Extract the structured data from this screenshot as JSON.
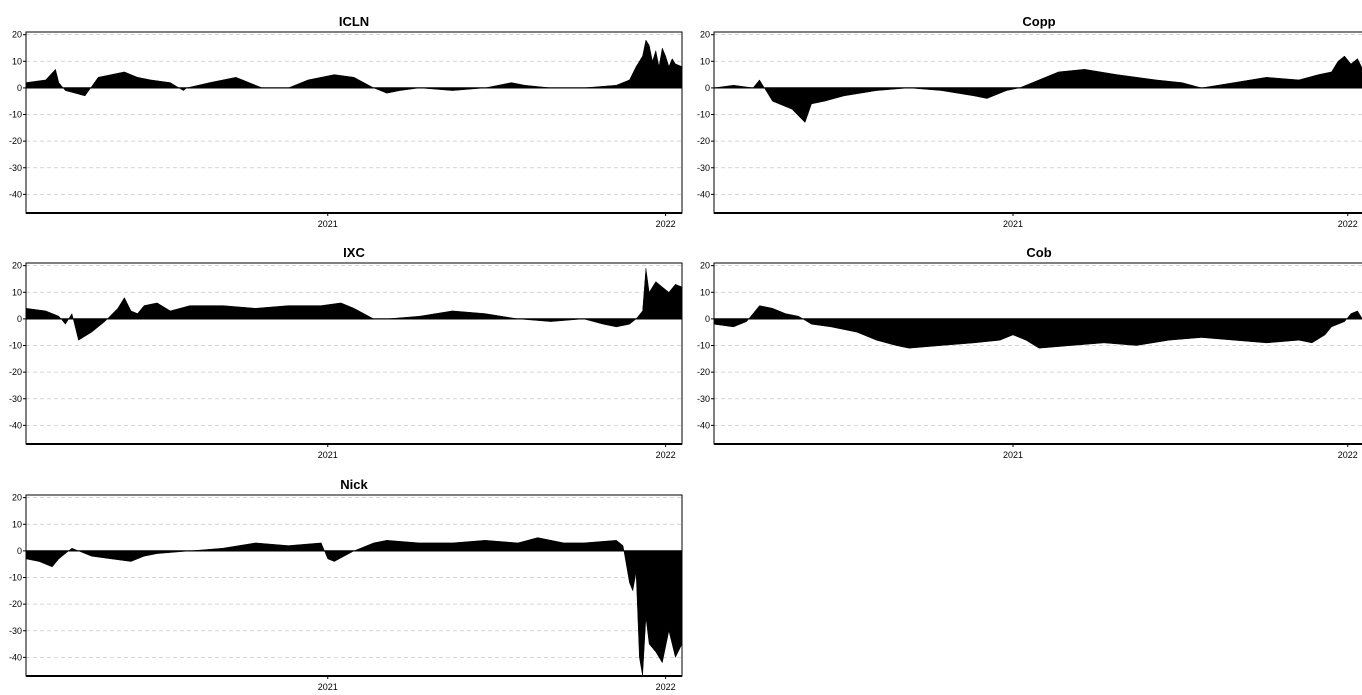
{
  "colors": {
    "fill": "#000000",
    "grid": "#c8c8c8",
    "background": "#ffffff"
  },
  "chart_data": [
    {
      "type": "area",
      "title": "ICLN",
      "ylim": [
        -47,
        21
      ],
      "yticks": [
        20,
        10,
        0,
        -10,
        -20,
        -30,
        -40
      ],
      "xticks": [
        {
          "x": 0.46,
          "label": "2021"
        },
        {
          "x": 0.975,
          "label": "2022"
        }
      ],
      "grid": true,
      "x": [
        0.0,
        0.03,
        0.045,
        0.05,
        0.06,
        0.075,
        0.09,
        0.11,
        0.15,
        0.17,
        0.19,
        0.22,
        0.24,
        0.245,
        0.28,
        0.32,
        0.33,
        0.36,
        0.4,
        0.43,
        0.47,
        0.5,
        0.53,
        0.55,
        0.57,
        0.6,
        0.65,
        0.7,
        0.74,
        0.76,
        0.8,
        0.85,
        0.9,
        0.92,
        0.93,
        0.94,
        0.945,
        0.95,
        0.955,
        0.96,
        0.965,
        0.97,
        0.975,
        0.98,
        0.985,
        0.99,
        1.0
      ],
      "values": [
        2,
        3,
        7,
        2,
        -1,
        -2,
        -3,
        4,
        6,
        4,
        3,
        2,
        -1,
        0,
        2,
        4,
        3,
        0,
        0,
        3,
        5,
        4,
        0,
        -2,
        -1,
        0,
        -1,
        0,
        2,
        1,
        0,
        0,
        1,
        3,
        8,
        12,
        18,
        16,
        10,
        14,
        8,
        15,
        12,
        8,
        11,
        9,
        8
      ]
    },
    {
      "type": "area",
      "title": "Copp",
      "ylim": [
        -47,
        21
      ],
      "yticks": [
        20,
        10,
        0,
        -10,
        -20,
        -30,
        -40
      ],
      "xticks": [
        {
          "x": 0.46,
          "label": "2021"
        },
        {
          "x": 0.975,
          "label": "2022"
        }
      ],
      "grid": true,
      "x": [
        0.0,
        0.03,
        0.06,
        0.07,
        0.09,
        0.12,
        0.14,
        0.15,
        0.17,
        0.2,
        0.25,
        0.3,
        0.35,
        0.4,
        0.42,
        0.45,
        0.47,
        0.5,
        0.53,
        0.57,
        0.62,
        0.68,
        0.72,
        0.75,
        0.8,
        0.85,
        0.9,
        0.93,
        0.95,
        0.96,
        0.97,
        0.98,
        0.99,
        1.0
      ],
      "values": [
        0,
        1,
        0,
        3,
        -5,
        -8,
        -13,
        -6,
        -5,
        -3,
        -1,
        0,
        -1,
        -3,
        -4,
        -1,
        0,
        3,
        6,
        7,
        5,
        3,
        2,
        0,
        2,
        4,
        3,
        5,
        6,
        10,
        12,
        9,
        11,
        6
      ]
    },
    {
      "type": "area",
      "title": "IXC",
      "ylim": [
        -47,
        21
      ],
      "yticks": [
        20,
        10,
        0,
        -10,
        -20,
        -30,
        -40
      ],
      "xticks": [
        {
          "x": 0.46,
          "label": "2021"
        },
        {
          "x": 0.975,
          "label": "2022"
        }
      ],
      "grid": true,
      "x": [
        0.0,
        0.03,
        0.05,
        0.06,
        0.07,
        0.08,
        0.1,
        0.12,
        0.14,
        0.15,
        0.16,
        0.17,
        0.18,
        0.2,
        0.22,
        0.25,
        0.3,
        0.35,
        0.4,
        0.45,
        0.48,
        0.5,
        0.53,
        0.55,
        0.6,
        0.65,
        0.7,
        0.75,
        0.8,
        0.85,
        0.88,
        0.9,
        0.92,
        0.93,
        0.94,
        0.945,
        0.95,
        0.96,
        0.97,
        0.98,
        0.99,
        1.0
      ],
      "values": [
        4,
        3,
        1,
        -2,
        2,
        -8,
        -5,
        -1,
        4,
        8,
        3,
        2,
        5,
        6,
        3,
        5,
        5,
        4,
        5,
        5,
        6,
        4,
        0,
        0,
        1,
        3,
        2,
        0,
        -1,
        0,
        -2,
        -3,
        -2,
        0,
        3,
        19,
        10,
        14,
        12,
        10,
        13,
        12
      ]
    },
    {
      "type": "area",
      "title": "Cob",
      "ylim": [
        -47,
        21
      ],
      "yticks": [
        20,
        10,
        0,
        -10,
        -20,
        -30,
        -40
      ],
      "xticks": [
        {
          "x": 0.46,
          "label": "2021"
        },
        {
          "x": 0.975,
          "label": "2022"
        }
      ],
      "grid": true,
      "x": [
        0.0,
        0.03,
        0.05,
        0.07,
        0.09,
        0.11,
        0.13,
        0.15,
        0.18,
        0.22,
        0.25,
        0.28,
        0.3,
        0.35,
        0.4,
        0.44,
        0.46,
        0.48,
        0.5,
        0.55,
        0.6,
        0.65,
        0.7,
        0.75,
        0.8,
        0.85,
        0.9,
        0.92,
        0.94,
        0.95,
        0.97,
        0.98,
        0.99,
        1.0
      ],
      "values": [
        -2,
        -3,
        -1,
        5,
        4,
        2,
        1,
        -2,
        -3,
        -5,
        -8,
        -10,
        -11,
        -10,
        -9,
        -8,
        -6,
        -8,
        -11,
        -10,
        -9,
        -10,
        -8,
        -7,
        -8,
        -9,
        -8,
        -9,
        -6,
        -3,
        -1,
        2,
        3,
        -1
      ]
    },
    {
      "type": "area",
      "title": "Nick",
      "ylim": [
        -47,
        21
      ],
      "yticks": [
        20,
        10,
        0,
        -10,
        -20,
        -30,
        -40
      ],
      "xticks": [
        {
          "x": 0.46,
          "label": "2021"
        },
        {
          "x": 0.975,
          "label": "2022"
        }
      ],
      "grid": true,
      "x": [
        0.0,
        0.02,
        0.04,
        0.05,
        0.07,
        0.08,
        0.1,
        0.13,
        0.16,
        0.18,
        0.2,
        0.25,
        0.3,
        0.35,
        0.4,
        0.45,
        0.46,
        0.47,
        0.5,
        0.53,
        0.55,
        0.6,
        0.65,
        0.7,
        0.75,
        0.78,
        0.82,
        0.85,
        0.9,
        0.91,
        0.92,
        0.925,
        0.93,
        0.935,
        0.94,
        0.945,
        0.95,
        0.96,
        0.97,
        0.98,
        0.99,
        1.0
      ],
      "values": [
        -3,
        -4,
        -6,
        -3,
        1,
        0,
        -2,
        -3,
        -4,
        -2,
        -1,
        0,
        1,
        3,
        2,
        3,
        -3,
        -4,
        0,
        3,
        4,
        3,
        3,
        4,
        3,
        5,
        3,
        3,
        4,
        2,
        -12,
        -15,
        -8,
        -40,
        -47,
        -25,
        -35,
        -38,
        -42,
        -30,
        -40,
        -35
      ]
    }
  ]
}
